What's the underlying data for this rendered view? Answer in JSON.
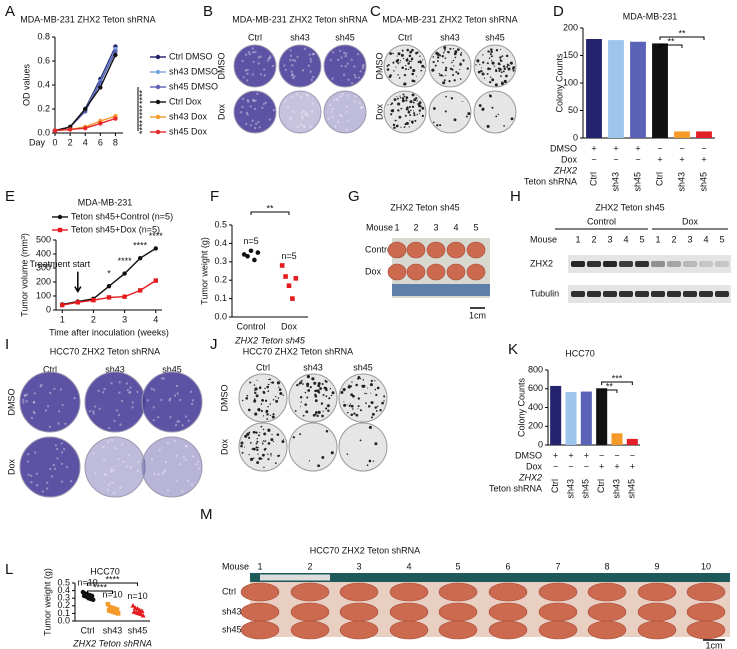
{
  "chart_data": [
    {
      "panel": "A",
      "type": "line",
      "title": "MDA-MB-231 ZHX2 Teton shRNA",
      "ylabel": "OD values",
      "xlabel": "Day",
      "x": [
        0,
        2,
        4,
        6,
        8
      ],
      "xlim": [
        0,
        9
      ],
      "xticks": [
        0,
        2,
        4,
        6,
        8
      ],
      "ylim": [
        0,
        0.8
      ],
      "yticks": [
        {
          "value": 0,
          "label": "0.0"
        },
        0.2,
        0.4,
        0.6,
        0.8
      ],
      "legend": "right",
      "series": [
        {
          "name": "Ctrl DMSO",
          "color": "#1f1f6b",
          "marker": "circle",
          "values": [
            0.02,
            0.05,
            0.2,
            0.45,
            0.72
          ]
        },
        {
          "name": "sh43 DMSO",
          "color": "#7aa6dc",
          "marker": "circle",
          "values": [
            0.02,
            0.05,
            0.19,
            0.43,
            0.7
          ]
        },
        {
          "name": "sh45 DMSO",
          "color": "#5a5fb3",
          "marker": "circle",
          "values": [
            0.02,
            0.05,
            0.18,
            0.42,
            0.68
          ]
        },
        {
          "name": "Ctrl Dox",
          "color": "#111111",
          "marker": "circle",
          "values": [
            0.02,
            0.05,
            0.2,
            0.38,
            0.65
          ]
        },
        {
          "name": "sh43 Dox",
          "color": "#f39a2b",
          "marker": "circle",
          "values": [
            0.02,
            0.03,
            0.05,
            0.1,
            0.14
          ]
        },
        {
          "name": "sh45 Dox",
          "color": "#e8262a",
          "marker": "circle",
          "values": [
            0.02,
            0.03,
            0.04,
            0.08,
            0.12
          ]
        }
      ],
      "significance": [
        "****",
        "****",
        "****"
      ]
    },
    {
      "panel": "D",
      "type": "bar",
      "title": "MDA-MB-231",
      "ylabel": "Colony Counts",
      "categories": [
        "Ctrl",
        "sh43",
        "sh45",
        "Ctrl",
        "sh43",
        "sh45"
      ],
      "values": [
        180,
        178,
        175,
        172,
        12,
        12
      ],
      "colors": [
        "#23236e",
        "#9ec5ec",
        "#5b63b8",
        "#111111",
        "#f59a28",
        "#e3202a"
      ],
      "ylim": [
        0,
        200
      ],
      "yticks": [
        0,
        50,
        100,
        150,
        200
      ],
      "treatments": [
        {
          "label": "DMSO",
          "signs": [
            "+",
            "+",
            "+",
            "−",
            "−",
            "−"
          ]
        },
        {
          "label": "Dox",
          "signs": [
            "−",
            "−",
            "−",
            "+",
            "+",
            "+"
          ]
        }
      ],
      "group_label": [
        "ZHX2",
        "Teton shRNA"
      ],
      "comparisons": [
        {
          "pair": [
            3,
            4
          ],
          "label": "**"
        },
        {
          "pair": [
            3,
            5
          ],
          "label": "**"
        }
      ]
    },
    {
      "panel": "E",
      "type": "line",
      "title": "MDA-MB-231",
      "ylabel": "Tumor volume (mm³)",
      "xlabel": "Time after inoculation (weeks)",
      "x": [
        1,
        1.5,
        2,
        2.5,
        3,
        3.5,
        4
      ],
      "xlim": [
        0.8,
        4.2
      ],
      "xticks": [
        1,
        2,
        3,
        4
      ],
      "ylim": [
        0,
        500
      ],
      "yticks": [
        0,
        100,
        200,
        300,
        400,
        500
      ],
      "legend": "upper left",
      "series": [
        {
          "name": "Teton sh45+Control (n=5)",
          "color": "#111111",
          "marker": "circle",
          "values": [
            40,
            60,
            80,
            170,
            260,
            370,
            440
          ]
        },
        {
          "name": "Teton sh45+Dox (n=5)",
          "color": "#e41a1c",
          "marker": "square",
          "values": [
            35,
            55,
            70,
            90,
            95,
            140,
            210
          ]
        }
      ],
      "point_significance": [
        null,
        null,
        null,
        "*",
        "****",
        "****",
        "****"
      ],
      "annotations": [
        {
          "text": "Treatment start",
          "x": 1.5
        }
      ]
    },
    {
      "panel": "F",
      "type": "strip",
      "ylabel": "Tumor weight (g)",
      "xlabel": "ZHX2 Teton sh45",
      "categories": [
        "Control",
        "Dox"
      ],
      "values": [
        [
          0.34,
          0.33,
          0.36,
          0.31,
          0.35
        ],
        [
          0.28,
          0.22,
          0.17,
          0.1,
          0.21
        ]
      ],
      "colors": [
        "#111111",
        "#e41a1c"
      ],
      "markers": [
        "circle",
        "square"
      ],
      "n_labels": [
        "n=5",
        "n=5"
      ],
      "ylim": [
        0,
        0.5
      ],
      "yticks": [
        {
          "value": 0,
          "label": "0.0"
        },
        0.1,
        0.2,
        0.3,
        0.4,
        0.5
      ],
      "comparisons": [
        {
          "pair": [
            0,
            1
          ],
          "label": "**"
        }
      ]
    },
    {
      "panel": "K",
      "type": "bar",
      "title": "HCC70",
      "ylabel": "Colony Counts",
      "categories": [
        "Ctrl",
        "sh43",
        "sh45",
        "Ctrl",
        "sh43",
        "sh45"
      ],
      "values": [
        630,
        565,
        570,
        605,
        125,
        65
      ],
      "colors": [
        "#23236e",
        "#9ec5ec",
        "#5b63b8",
        "#111111",
        "#f59a28",
        "#e3202a"
      ],
      "ylim": [
        0,
        800
      ],
      "yticks": [
        0,
        200,
        400,
        600,
        800
      ],
      "treatments": [
        {
          "label": "DMSO",
          "signs": [
            "+",
            "+",
            "+",
            "−",
            "−",
            "−"
          ]
        },
        {
          "label": "Dox",
          "signs": [
            "−",
            "−",
            "−",
            "+",
            "+",
            "+"
          ]
        }
      ],
      "group_label": [
        "ZHX2",
        "Teton shRNA"
      ],
      "comparisons": [
        {
          "pair": [
            3,
            4
          ],
          "label": "**"
        },
        {
          "pair": [
            3,
            5
          ],
          "label": "***"
        }
      ]
    },
    {
      "panel": "L",
      "type": "strip",
      "title": "HCC70",
      "ylabel": "Tumor weight (g)",
      "xlabel": "ZHX2 Teton shRNA",
      "categories": [
        "Ctrl",
        "sh43",
        "sh45"
      ],
      "values": [
        [
          0.38,
          0.36,
          0.35,
          0.34,
          0.33,
          0.33,
          0.32,
          0.3,
          0.29,
          0.28
        ],
        [
          0.22,
          0.18,
          0.17,
          0.16,
          0.15,
          0.14,
          0.13,
          0.12,
          0.11,
          0.1
        ],
        [
          0.2,
          0.17,
          0.16,
          0.14,
          0.13,
          0.12,
          0.11,
          0.1,
          0.09,
          0.07
        ]
      ],
      "colors": [
        "#111111",
        "#f39a2b",
        "#e41a1c"
      ],
      "markers": [
        "circle",
        "square",
        "triangle"
      ],
      "n_labels": [
        "n=10",
        "n=10",
        "n=10"
      ],
      "ylim": [
        0,
        0.5
      ],
      "yticks": [
        {
          "value": 0,
          "label": "0.0"
        },
        0.1,
        0.2,
        0.3,
        0.4,
        0.5
      ],
      "comparisons": [
        {
          "pair": [
            0,
            1
          ],
          "label": "****"
        },
        {
          "pair": [
            0,
            2
          ],
          "label": "****"
        }
      ]
    }
  ],
  "images": [
    {
      "panel": "B",
      "title": "MDA-MB-231 ZHX2 Teton shRNA",
      "columns": [
        "Ctrl",
        "sh43",
        "sh45"
      ],
      "rows": [
        "DMSO",
        "Dox"
      ]
    },
    {
      "panel": "C",
      "title": "MDA-MB-231 ZHX2 Teton shRNA",
      "columns": [
        "Ctrl",
        "sh43",
        "sh45"
      ],
      "rows": [
        "DMSO",
        "Dox"
      ]
    },
    {
      "panel": "G",
      "title": "ZHX2 Teton sh45",
      "axis_label": "Mouse",
      "columns": [
        "1",
        "2",
        "3",
        "4",
        "5"
      ],
      "rows": [
        "Control",
        "Dox"
      ],
      "scale": "1cm"
    },
    {
      "panel": "H",
      "title": "ZHX2 Teton sh45",
      "groups": [
        "Control",
        "Dox"
      ],
      "axis_label": "Mouse",
      "columns": [
        "1",
        "2",
        "3",
        "4",
        "5",
        "1",
        "2",
        "3",
        "4",
        "5"
      ],
      "rows": [
        "ZHX2",
        "Tubulin"
      ]
    },
    {
      "panel": "I",
      "title": "HCC70 ZHX2 Teton shRNA",
      "columns": [
        "Ctrl",
        "sh43",
        "sh45"
      ],
      "rows": [
        "DMSO",
        "Dox"
      ]
    },
    {
      "panel": "J",
      "title": "HCC70 ZHX2 Teton shRNA",
      "columns": [
        "Ctrl",
        "sh43",
        "sh45"
      ],
      "rows": [
        "DMSO",
        "Dox"
      ]
    },
    {
      "panel": "M",
      "title": "HCC70 ZHX2 Teton shRNA",
      "axis_label": "Mouse",
      "columns": [
        "1",
        "2",
        "3",
        "4",
        "5",
        "6",
        "7",
        "8",
        "9",
        "10"
      ],
      "rows": [
        "Ctrl",
        "sh43",
        "sh45"
      ],
      "scale": "1cm"
    }
  ]
}
